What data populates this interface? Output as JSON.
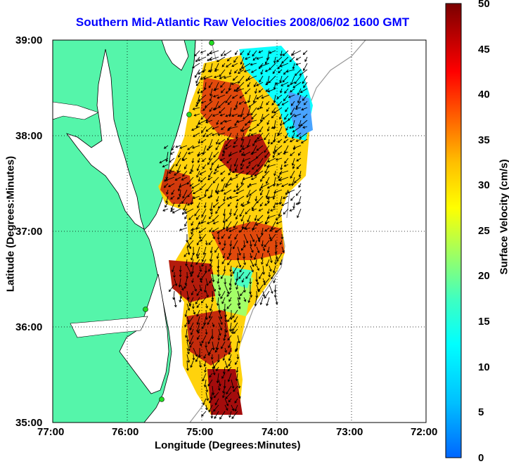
{
  "title": "Southern Mid-Atlantic Raw Velocities 2008/06/02 1600 GMT",
  "x_axis": {
    "label": "Longitude (Degrees:Minutes)",
    "ticks": [
      "77:00",
      "76:00",
      "75:00",
      "74:00",
      "73:00",
      "72:00"
    ]
  },
  "y_axis": {
    "label": "Latitude (Degrees:Minutes)",
    "ticks": [
      "39:00",
      "38:00",
      "37:00",
      "36:00",
      "35:00"
    ]
  },
  "colorbar": {
    "label": "Surface Velocity (cm/s)",
    "ticks": [
      "50",
      "45",
      "40",
      "35",
      "30",
      "25",
      "20",
      "15",
      "10",
      "5",
      "0"
    ],
    "range": [
      0,
      50
    ]
  },
  "colors": {
    "land": "#55f5aa",
    "water": "#ffffff",
    "title": "#0000ff",
    "station": "#22dd22"
  },
  "map_extent": {
    "lon": [
      -77,
      -72
    ],
    "lat": [
      35,
      39
    ]
  }
}
